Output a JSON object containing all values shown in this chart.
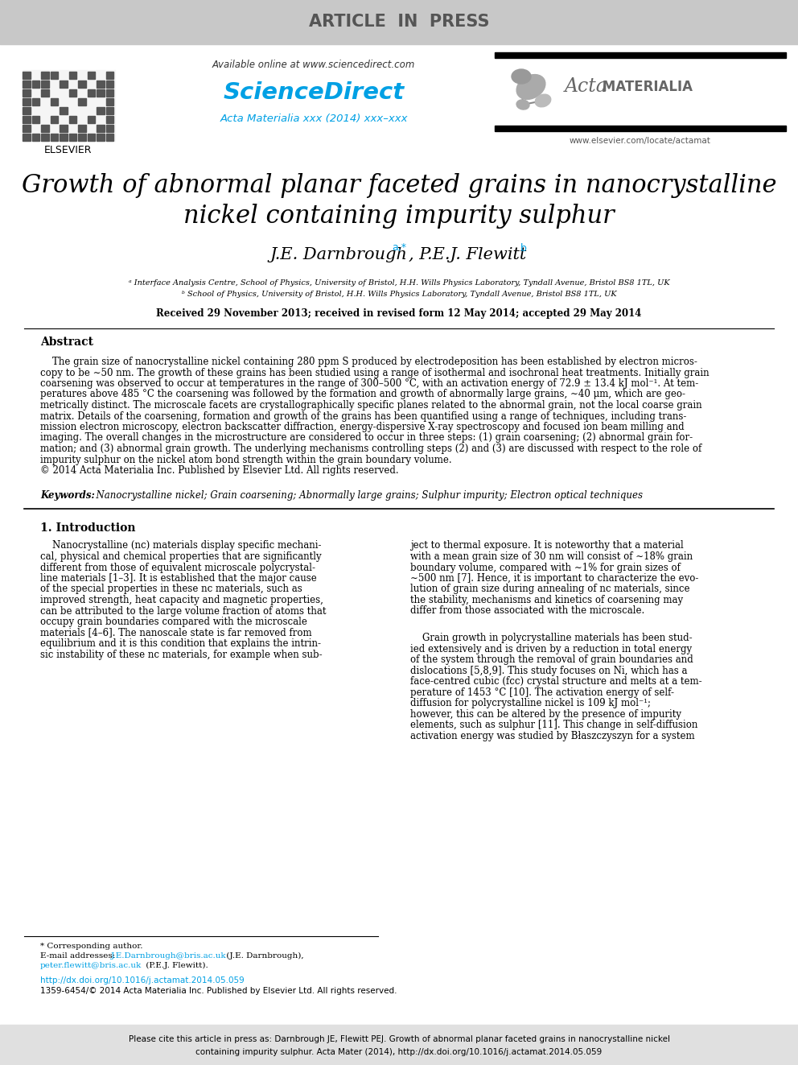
{
  "bg_color": "#ffffff",
  "header_bar_color": "#c8c8c8",
  "header_text": "ARTICLE  IN  PRESS",
  "header_text_color": "#555555",
  "elsevier_text": "ELSEVIER",
  "available_text": "Available online at www.sciencedirect.com",
  "sciencedirect_text": "ScienceDirect",
  "sciencedirect_color": "#00a0e4",
  "journal_ref": "Acta Materialia xxx (2014) xxx–xxx",
  "journal_ref_color": "#00a0e4",
  "acta_text": "Acta",
  "materialia_text": " MATERIALIA",
  "website_text": "www.elsevier.com/locate/actamat",
  "title_line1": "Growth of abnormal planar faceted grains in nanocrystalline",
  "title_line2": "nickel containing impurity sulphur",
  "title_color": "#000000",
  "author1": "J.E. Darnbrough",
  "author1_super": "a,*",
  "author2": ", P.E.J. Flewitt",
  "author2_super": "b",
  "affil_a": "ᵃ Interface Analysis Centre, School of Physics, University of Bristol, H.H. Wills Physics Laboratory, Tyndall Avenue, Bristol BS8 1TL, UK",
  "affil_b": "ᵇ School of Physics, University of Bristol, H.H. Wills Physics Laboratory, Tyndall Avenue, Bristol BS8 1TL, UK",
  "received_text": "Received 29 November 2013; received in revised form 12 May 2014; accepted 29 May 2014",
  "abstract_title": "Abstract",
  "abstract_lines": [
    "    The grain size of nanocrystalline nickel containing 280 ppm S produced by electrodeposition has been established by electron micros-",
    "copy to be ∼50 nm. The growth of these grains has been studied using a range of isothermal and isochronal heat treatments. Initially grain",
    "coarsening was observed to occur at temperatures in the range of 300–500 °C, with an activation energy of 72.9 ± 13.4 kJ mol⁻¹. At tem-",
    "peratures above 485 °C the coarsening was followed by the formation and growth of abnormally large grains, ∼40 μm, which are geo-",
    "metrically distinct. The microscale facets are crystallographically specific planes related to the abnormal grain, not the local coarse grain",
    "matrix. Details of the coarsening, formation and growth of the grains has been quantified using a range of techniques, including trans-",
    "mission electron microscopy, electron backscatter diffraction, energy-dispersive X-ray spectroscopy and focused ion beam milling and",
    "imaging. The overall changes in the microstructure are considered to occur in three steps: (1) grain coarsening; (2) abnormal grain for-",
    "mation; and (3) abnormal grain growth. The underlying mechanisms controlling steps (2) and (3) are discussed with respect to the role of",
    "impurity sulphur on the nickel atom bond strength within the grain boundary volume.",
    "© 2014 Acta Materialia Inc. Published by Elsevier Ltd. All rights reserved."
  ],
  "keywords_label": "Keywords:",
  "keywords_text": "  Nanocrystalline nickel; Grain coarsening; Abnormally large grains; Sulphur impurity; Electron optical techniques",
  "intro_title": "1. Introduction",
  "col1_lines": [
    "    Nanocrystalline (nc) materials display specific mechani-",
    "cal, physical and chemical properties that are significantly",
    "different from those of equivalent microscale polycrystal-",
    "line materials [1–3]. It is established that the major cause",
    "of the special properties in these nc materials, such as",
    "improved strength, heat capacity and magnetic properties,",
    "can be attributed to the large volume fraction of atoms that",
    "occupy grain boundaries compared with the microscale",
    "materials [4–6]. The nanoscale state is far removed from",
    "equilibrium and it is this condition that explains the intrin-",
    "sic instability of these nc materials, for example when sub-"
  ],
  "col2_lines_1": [
    "ject to thermal exposure. It is noteworthy that a material",
    "with a mean grain size of 30 nm will consist of ∼18% grain",
    "boundary volume, compared with ∼1% for grain sizes of",
    "∼500 nm [7]. Hence, it is important to characterize the evo-",
    "lution of grain size during annealing of nc materials, since",
    "the stability, mechanisms and kinetics of coarsening may",
    "differ from those associated with the microscale."
  ],
  "col2_lines_2": [
    "    Grain growth in polycrystalline materials has been stud-",
    "ied extensively and is driven by a reduction in total energy",
    "of the system through the removal of grain boundaries and",
    "dislocations [5,8,9]. This study focuses on Ni, which has a",
    "face-centred cubic (fcc) crystal structure and melts at a tem-",
    "perature of 1453 °C [10]. The activation energy of self-",
    "diffusion for polycrystalline nickel is 109 kJ mol⁻¹;",
    "however, this can be altered by the presence of impurity",
    "elements, such as sulphur [11]. This change in self-diffusion",
    "activation energy was studied by Błaszczyszyn for a system"
  ],
  "footnote_star": "* Corresponding author.",
  "footnote_email_label": "E-mail addresses: ",
  "footnote_email1": "J.E.Darnbrough@bris.ac.uk",
  "footnote_email1_suffix": " (J.E. Darnbrough),",
  "footnote_email2": "peter.flewitt@bris.ac.uk",
  "footnote_email2_suffix": " (P.E.J. Flewitt).",
  "footnote_url": "http://dx.doi.org/10.1016/j.actamat.2014.05.059",
  "footnote_issn": "1359-6454/© 2014 Acta Materialia Inc. Published by Elsevier Ltd. All rights reserved.",
  "bottom_bar_color": "#e0e0e0",
  "bottom_line1": "Please cite this article in press as: Darnbrough JE, Flewitt PEJ. Growth of abnormal planar faceted grains in nanocrystalline nickel",
  "bottom_line2": "containing impurity sulphur. Acta Mater (2014), http://dx.doi.org/10.1016/j.actamat.2014.05.059",
  "link_color": "#00a0e4"
}
